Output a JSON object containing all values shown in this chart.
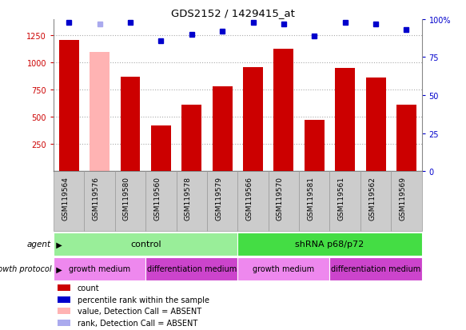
{
  "title": "GDS2152 / 1429415_at",
  "samples": [
    "GSM119564",
    "GSM119576",
    "GSM119580",
    "GSM119560",
    "GSM119578",
    "GSM119579",
    "GSM119566",
    "GSM119570",
    "GSM119581",
    "GSM119561",
    "GSM119562",
    "GSM119569"
  ],
  "counts": [
    1210,
    1100,
    870,
    420,
    610,
    780,
    960,
    1130,
    470,
    950,
    860,
    610
  ],
  "absent_count": [
    false,
    true,
    false,
    false,
    false,
    false,
    false,
    false,
    false,
    false,
    false,
    false
  ],
  "percentile_ranks": [
    98,
    97,
    98,
    86,
    90,
    92,
    98,
    97,
    89,
    98,
    97,
    93
  ],
  "absent_rank": [
    false,
    true,
    false,
    false,
    false,
    false,
    false,
    false,
    false,
    false,
    false,
    false
  ],
  "bar_color_present": "#cc0000",
  "bar_color_absent": "#ffb3b3",
  "dot_color_present": "#0000cc",
  "dot_color_absent": "#aaaaee",
  "ylim_left": [
    0,
    1400
  ],
  "yticks_left": [
    250,
    500,
    750,
    1000,
    1250
  ],
  "ylim_right": [
    0,
    100
  ],
  "yticks_right": [
    0,
    25,
    50,
    75,
    100
  ],
  "agent_groups": [
    {
      "label": "control",
      "start": 0,
      "end": 6,
      "color": "#99ee99"
    },
    {
      "label": "shRNA p68/p72",
      "start": 6,
      "end": 12,
      "color": "#44dd44"
    }
  ],
  "growth_groups": [
    {
      "label": "growth medium",
      "start": 0,
      "end": 3,
      "color": "#ee88ee"
    },
    {
      "label": "differentiation medium",
      "start": 3,
      "end": 6,
      "color": "#cc44cc"
    },
    {
      "label": "growth medium",
      "start": 6,
      "end": 9,
      "color": "#ee88ee"
    },
    {
      "label": "differentiation medium",
      "start": 9,
      "end": 12,
      "color": "#cc44cc"
    }
  ],
  "legend_items": [
    {
      "label": "count",
      "color": "#cc0000"
    },
    {
      "label": "percentile rank within the sample",
      "color": "#0000cc"
    },
    {
      "label": "value, Detection Call = ABSENT",
      "color": "#ffb3b3"
    },
    {
      "label": "rank, Detection Call = ABSENT",
      "color": "#aaaaee"
    }
  ],
  "left_label_color": "#cc0000",
  "right_label_color": "#0000cc",
  "grid_color": "#aaaaaa",
  "sample_box_color": "#cccccc",
  "sample_box_edge": "#999999"
}
